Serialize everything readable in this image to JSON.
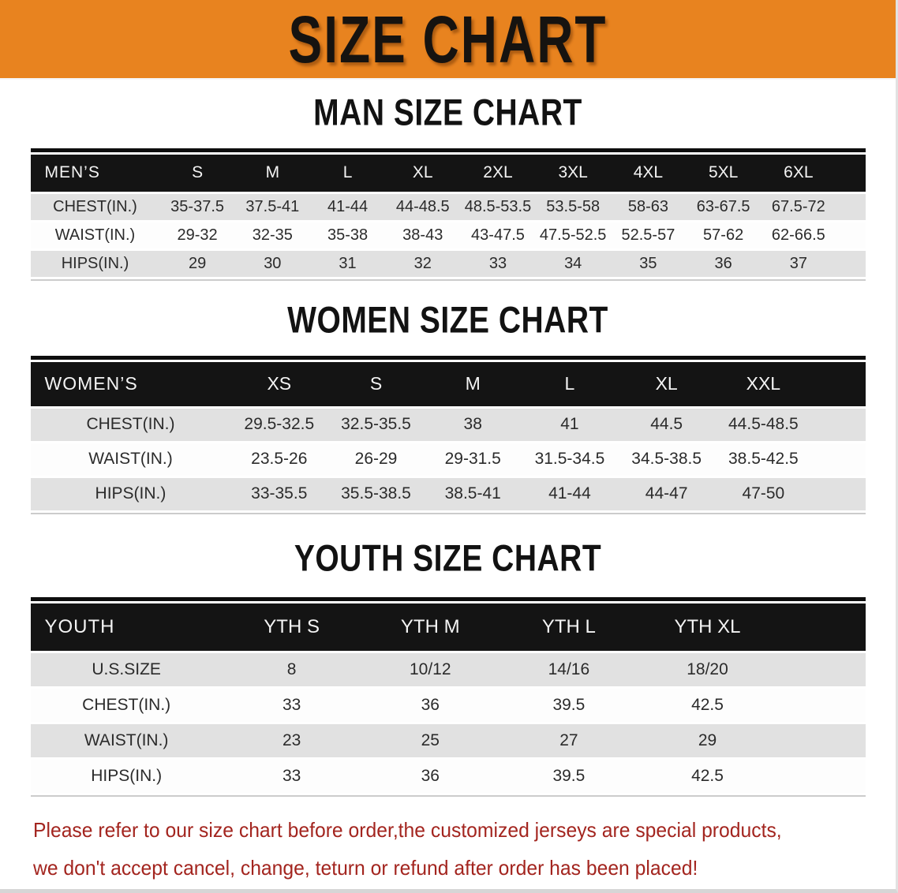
{
  "banner": {
    "title": "SIZE CHART"
  },
  "colors": {
    "banner_orange": "#E8831F",
    "header_black": "#141414",
    "row_gray": "#E1E1E1",
    "disclaimer_red": "#A3251F"
  },
  "men": {
    "heading": "MAN SIZE CHART",
    "label": "MEN’S",
    "columns": [
      "S",
      "M",
      "L",
      "XL",
      "2XL",
      "3XL",
      "4XL",
      "5XL",
      "6XL"
    ],
    "rows": [
      {
        "label": "CHEST(IN.)",
        "values": [
          "35-37.5",
          "37.5-41",
          "41-44",
          "44-48.5",
          "48.5-53.5",
          "53.5-58",
          "58-63",
          "63-67.5",
          "67.5-72"
        ]
      },
      {
        "label": "WAIST(IN.)",
        "values": [
          "29-32",
          "32-35",
          "35-38",
          "38-43",
          "43-47.5",
          "47.5-52.5",
          "52.5-57",
          "57-62",
          "62-66.5"
        ]
      },
      {
        "label": "HIPS(IN.)",
        "values": [
          "29",
          "30",
          "31",
          "32",
          "33",
          "34",
          "35",
          "36",
          "37"
        ]
      }
    ]
  },
  "women": {
    "heading": "WOMEN SIZE CHART",
    "label": "WOMEN’S",
    "columns": [
      "XS",
      "S",
      "M",
      "L",
      "XL",
      "XXL"
    ],
    "rows": [
      {
        "label": "CHEST(IN.)",
        "values": [
          "29.5-32.5",
          "32.5-35.5",
          "38",
          "41",
          "44.5",
          "44.5-48.5"
        ]
      },
      {
        "label": "WAIST(IN.)",
        "values": [
          "23.5-26",
          "26-29",
          "29-31.5",
          "31.5-34.5",
          "34.5-38.5",
          "38.5-42.5"
        ]
      },
      {
        "label": "HIPS(IN.)",
        "values": [
          "33-35.5",
          "35.5-38.5",
          "38.5-41",
          "41-44",
          "44-47",
          "47-50"
        ]
      }
    ]
  },
  "youth": {
    "heading": "YOUTH SIZE CHART",
    "label": "YOUTH",
    "columns": [
      "YTH S",
      "YTH M",
      "YTH L",
      "YTH XL"
    ],
    "rows": [
      {
        "label": "U.S.SIZE",
        "values": [
          "8",
          "10/12",
          "14/16",
          "18/20"
        ]
      },
      {
        "label": "CHEST(IN.)",
        "values": [
          "33",
          "36",
          "39.5",
          "42.5"
        ]
      },
      {
        "label": "WAIST(IN.)",
        "values": [
          "23",
          "25",
          "27",
          "29"
        ]
      },
      {
        "label": "HIPS(IN.)",
        "values": [
          "33",
          "36",
          "39.5",
          "42.5"
        ]
      }
    ]
  },
  "disclaimer": {
    "line1": "Please refer to our size chart before order,the customized jerseys are special products,",
    "line2": "we don't accept cancel, change, teturn or refund after order has been placed!"
  }
}
